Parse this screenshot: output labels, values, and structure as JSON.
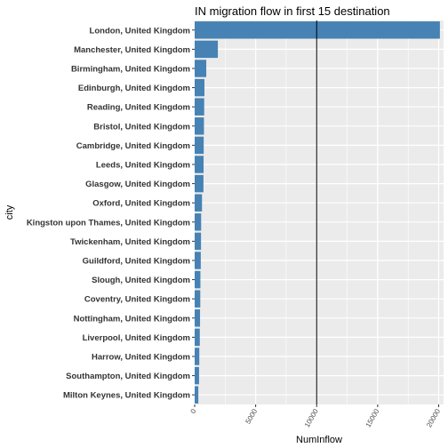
{
  "chart_data": {
    "type": "bar",
    "orientation": "horizontal",
    "title": "IN migration flow in first 15 destination",
    "xlabel": "NumInflow",
    "ylabel": "city",
    "xlim": [
      0,
      20400
    ],
    "xticks": [
      0,
      5000,
      10000,
      15000,
      20000
    ],
    "xtick_labels": [
      "0",
      "5000",
      "10000",
      "15000",
      "20000"
    ],
    "reference_line_x": 10000,
    "bar_color": "#4682B4",
    "panel_background": "#EBEBEB",
    "grid": true,
    "categories": [
      "London, United Kingdom",
      "Manchester, United Kingdom",
      "Birmingham, United Kingdom",
      "Edinburgh, United Kingdom",
      "Reading, United Kingdom",
      "Bristol, United Kingdom",
      "Cambridge, United Kingdom",
      "Leeds, United Kingdom",
      "Glasgow, United Kingdom",
      "Oxford, United Kingdom",
      "Kingston upon Thames, United Kingdom",
      "Twickenham, United Kingdom",
      "Guildford, United Kingdom",
      "Slough, United Kingdom",
      "Coventry, United Kingdom",
      "Nottingham, United Kingdom",
      "Liverpool, United Kingdom",
      "Harrow, United Kingdom",
      "Southampton, United Kingdom",
      "Milton Keynes, United Kingdom"
    ],
    "values": [
      20100,
      1900,
      950,
      800,
      780,
      760,
      740,
      730,
      720,
      600,
      530,
      520,
      500,
      470,
      460,
      440,
      420,
      380,
      360,
      300
    ]
  }
}
